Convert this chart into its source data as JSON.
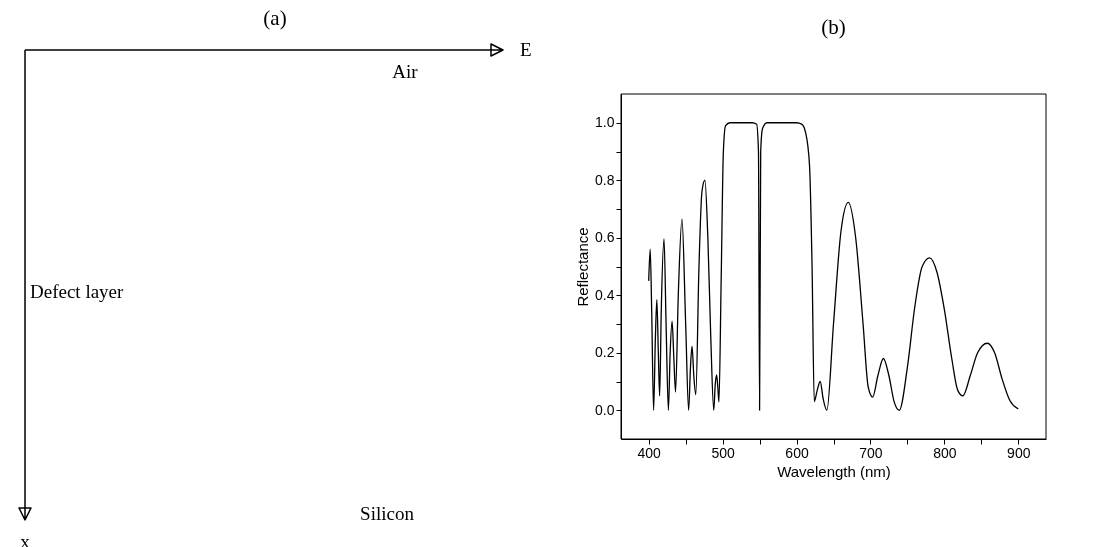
{
  "chart_data": [
    {
      "type": "other",
      "title": "(a)",
      "annotations": [
        "E",
        "Air",
        "Defect layer",
        "Silicon",
        "x"
      ]
    },
    {
      "type": "line",
      "title": "(b)",
      "xlabel": "Wavelength (nm)",
      "ylabel": "Reflectance",
      "x": [
        400,
        402,
        404,
        406.6,
        409,
        411,
        413,
        414.8,
        417,
        420.7,
        423.5,
        426.6,
        429,
        431.6,
        434,
        436.3,
        440,
        445,
        450,
        454,
        456.5,
        458.6,
        461,
        463.7,
        468,
        472,
        476,
        480,
        484,
        488,
        490,
        491.8,
        493.5,
        495,
        498,
        501,
        504,
        510,
        540,
        546,
        548.5,
        550,
        551.5,
        554,
        560,
        600,
        607,
        612.5,
        617.6,
        621,
        624,
        628,
        632,
        636,
        641,
        650,
        660,
        670,
        680,
        690,
        697,
        703,
        710,
        717.5,
        725,
        732,
        739,
        750,
        760,
        770,
        780,
        790,
        800,
        810,
        818,
        825,
        835,
        845,
        858,
        868,
        878,
        888.6,
        900
      ],
      "series": [
        {
          "color": "#000000",
          "values": [
            0.45,
            0.56,
            0.35,
            0.0,
            0.25,
            0.385,
            0.2,
            0.05,
            0.35,
            0.596,
            0.3,
            0.0,
            0.2,
            0.31,
            0.18,
            0.063,
            0.4,
            0.665,
            0.3,
            0.0,
            0.15,
            0.222,
            0.12,
            0.054,
            0.5,
            0.76,
            0.8,
            0.6,
            0.25,
            0.0,
            0.09,
            0.123,
            0.08,
            0.029,
            0.45,
            0.9,
            0.99,
            1.0,
            1.0,
            0.995,
            0.9,
            0.0,
            0.9,
            0.98,
            1.0,
            1.0,
            0.995,
            0.963,
            0.85,
            0.5,
            0.03,
            0.07,
            0.1,
            0.04,
            0.0,
            0.3,
            0.62,
            0.723,
            0.6,
            0.3,
            0.08,
            0.046,
            0.12,
            0.18,
            0.12,
            0.03,
            0.0,
            0.15,
            0.36,
            0.5,
            0.53,
            0.48,
            0.35,
            0.18,
            0.07,
            0.05,
            0.12,
            0.2,
            0.233,
            0.2,
            0.11,
            0.034,
            0.005
          ]
        }
      ],
      "xlim": [
        362.5,
        937.5
      ],
      "ylim": [
        -0.1,
        1.1
      ],
      "xticks": [
        400,
        {
          "value": 450,
          "label": null
        },
        500,
        {
          "value": 550,
          "label": null
        },
        600,
        {
          "value": 650,
          "label": null
        },
        700,
        {
          "value": 750,
          "label": null
        },
        800,
        {
          "value": 850,
          "label": null
        },
        900
      ],
      "yticks": [
        {
          "value": 0,
          "label": "0.0"
        },
        {
          "value": 0.1,
          "label": null
        },
        0.2,
        {
          "value": 0.3,
          "label": null
        },
        0.4,
        {
          "value": 0.5,
          "label": null
        },
        0.6,
        {
          "value": 0.7,
          "label": null
        },
        0.8,
        {
          "value": 0.9,
          "label": null
        },
        {
          "value": 1,
          "label": "1.0"
        }
      ],
      "grid": false
    }
  ]
}
